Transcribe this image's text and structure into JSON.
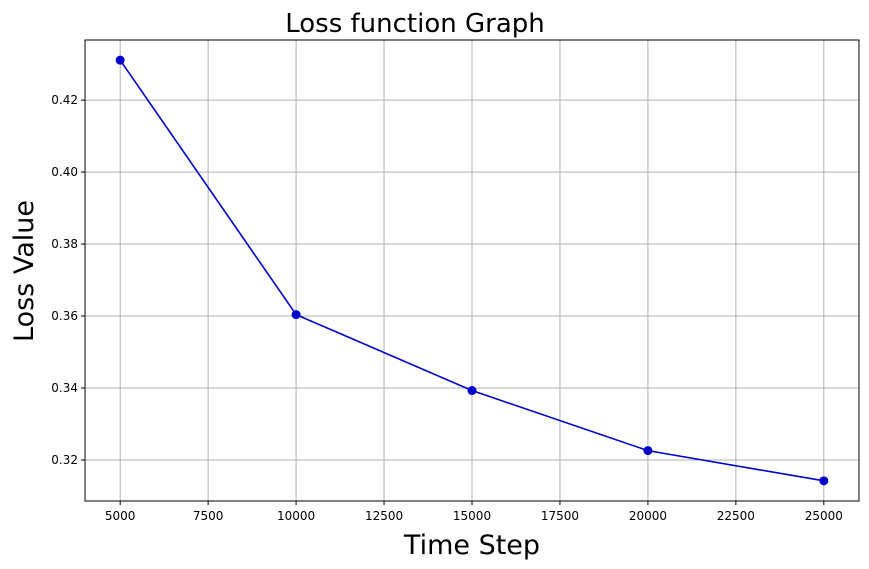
{
  "chart_data": {
    "type": "line",
    "title": "Loss function Graph",
    "xlabel": "Time Step",
    "ylabel": "Loss Value",
    "x": [
      5000,
      10000,
      15000,
      20000,
      25000
    ],
    "series": [
      {
        "values": [
          0.4311,
          0.3604,
          0.3393,
          0.3226,
          0.3142
        ],
        "color": "#0000cc",
        "marker": "circle"
      }
    ],
    "xlim": [
      4000,
      26000
    ],
    "ylim": [
      0.3086,
      0.4367
    ],
    "xticks": [
      5000,
      7500,
      10000,
      12500,
      15000,
      17500,
      20000,
      22500,
      25000
    ],
    "yticks": [
      0.32,
      0.34,
      0.36,
      0.38,
      0.4,
      0.42
    ],
    "ytick_labels": [
      "0.32",
      "0.34",
      "0.36",
      "0.38",
      "0.40",
      "0.42"
    ],
    "grid": true,
    "grid_color": "#b0b0b0",
    "line_color": "#0000cc"
  }
}
